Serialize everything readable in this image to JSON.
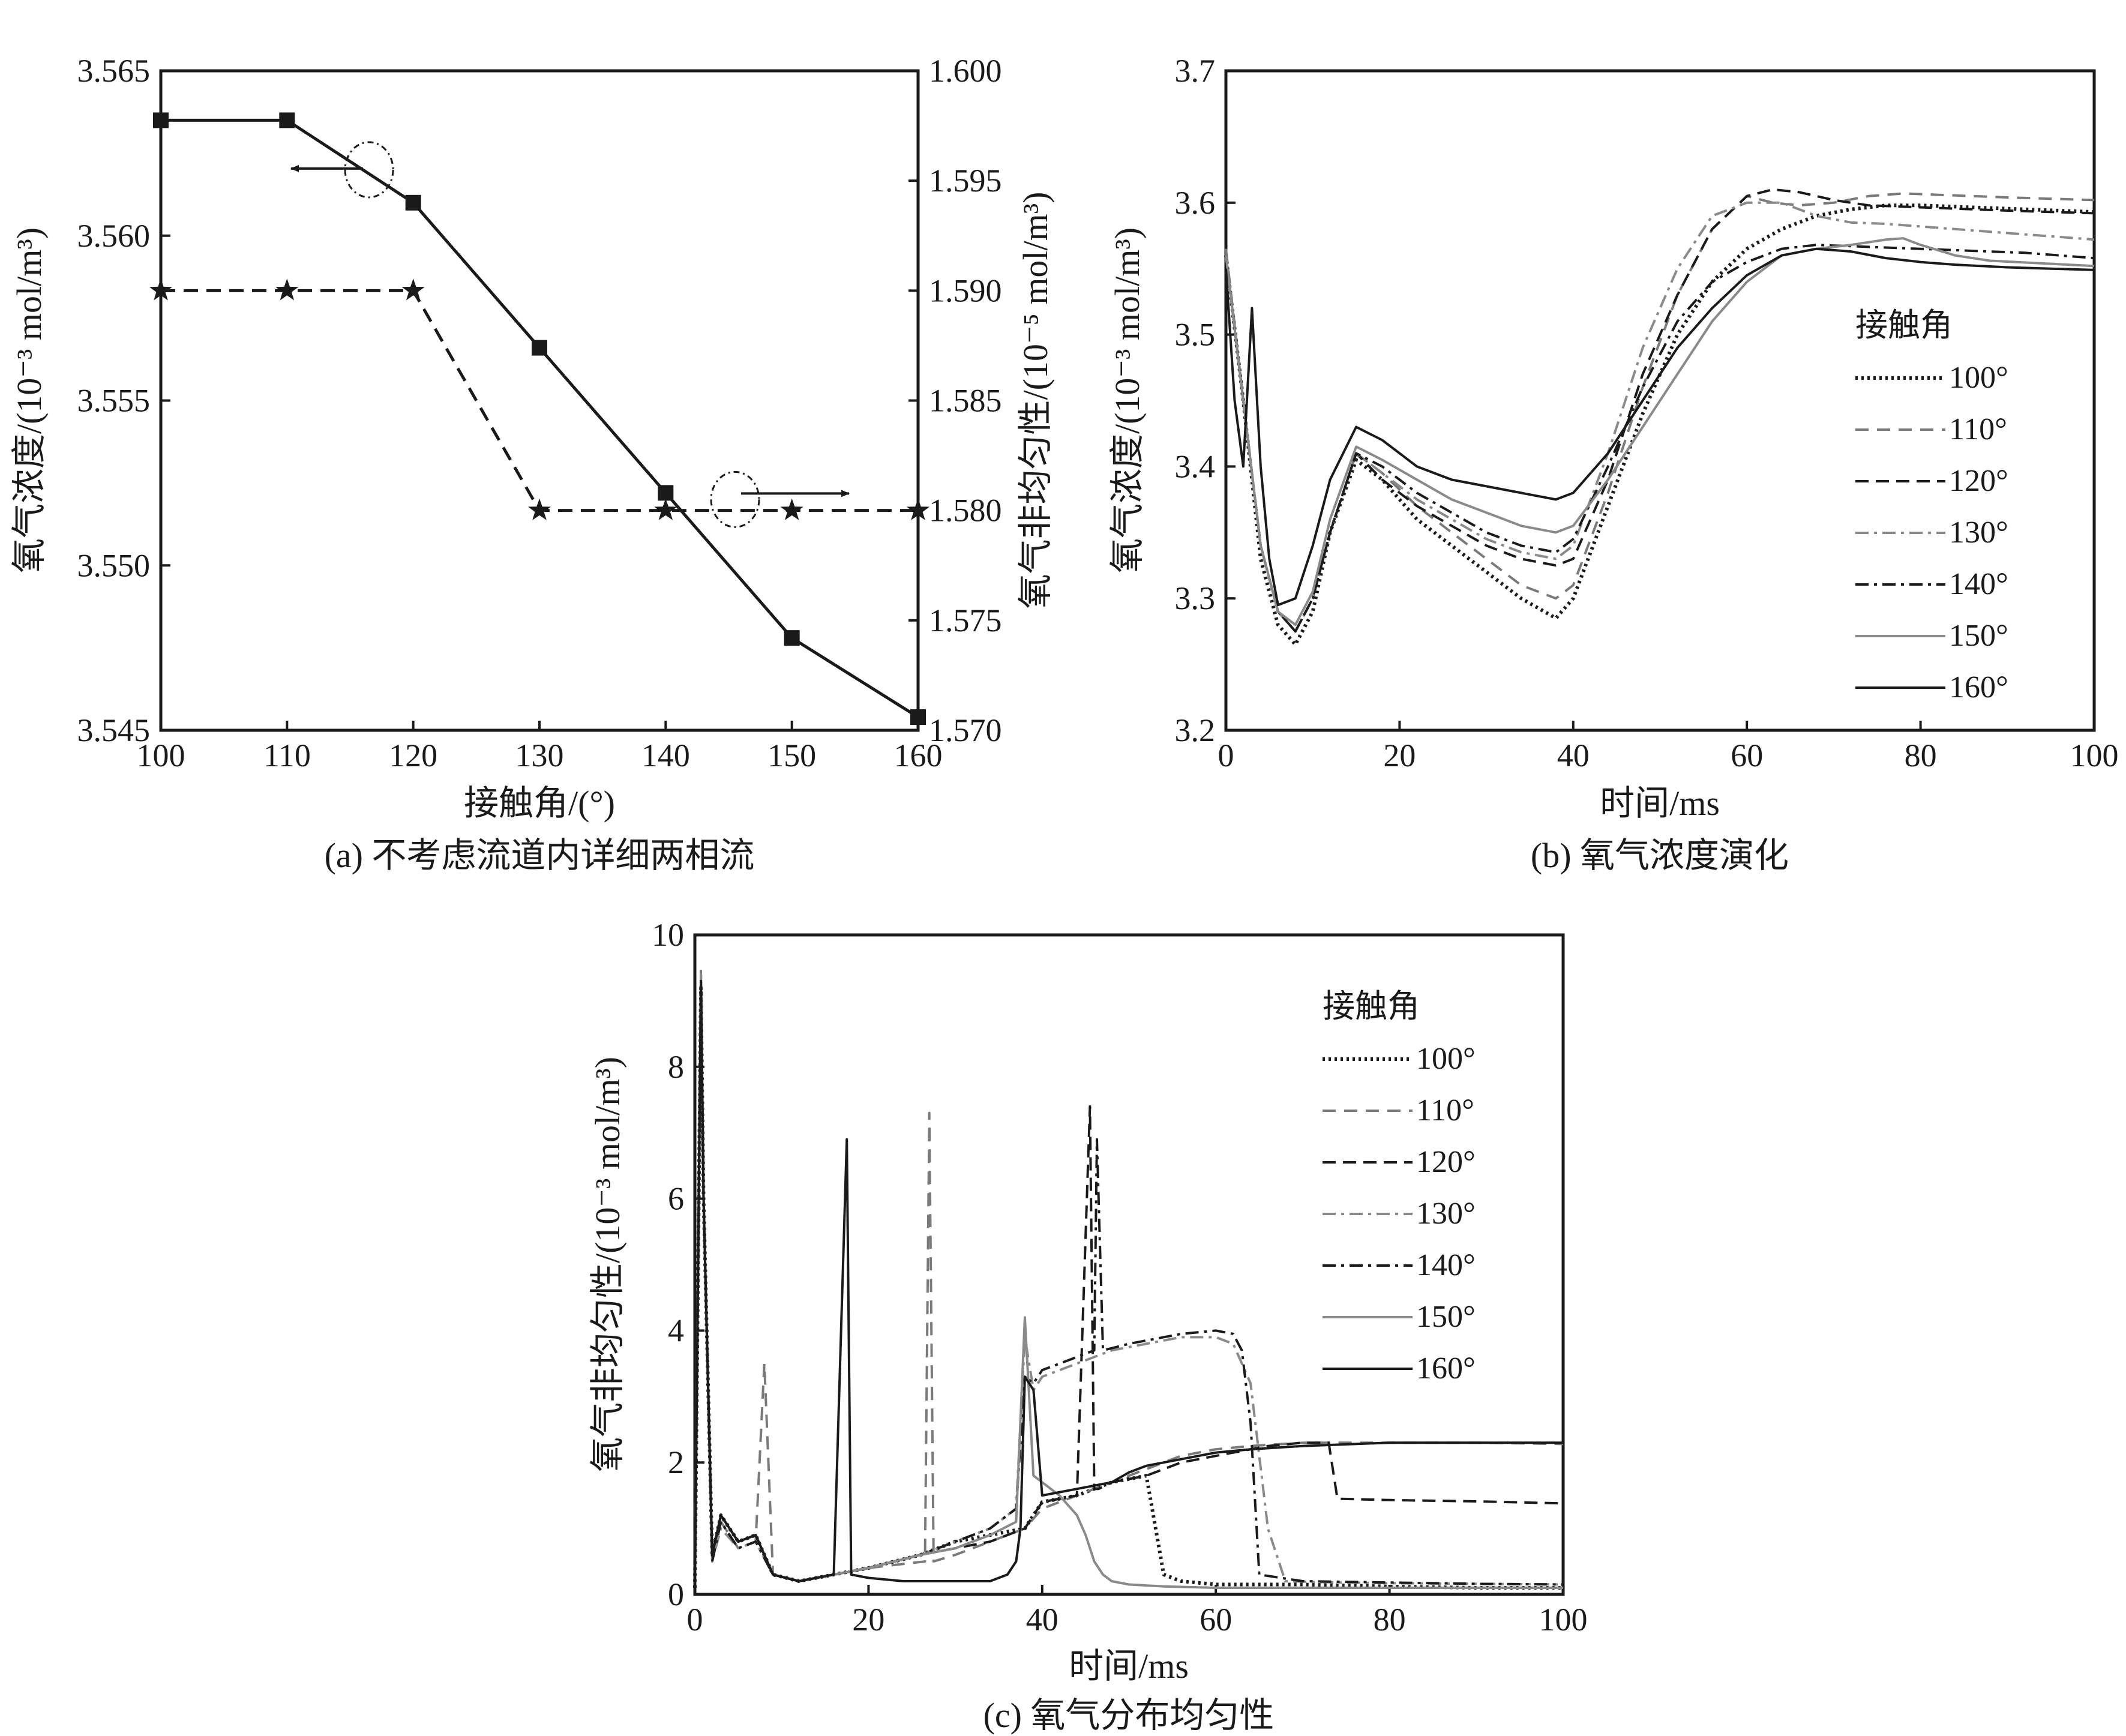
{
  "chart_data": [
    {
      "id": "a",
      "type": "line",
      "caption": "(a) 不考虑流道内详细两相流",
      "xlabel": "接触角/(°)",
      "ylabel_left": "氧气浓度/(10⁻³ mol/m³)",
      "ylabel_right": "氧气非均匀性/(10⁻⁵ mol/m³)",
      "xlim": [
        100,
        160
      ],
      "ylim_left": [
        3.545,
        3.565
      ],
      "ylim_right": [
        1.57,
        1.6
      ],
      "x_ticks": [
        "100",
        "110",
        "120",
        "130",
        "140",
        "150",
        "160"
      ],
      "y_left_ticks": [
        "3.545",
        "3.550",
        "3.555",
        "3.560",
        "3.565"
      ],
      "y_right_ticks": [
        "1.570",
        "1.575",
        "1.580",
        "1.585",
        "1.590",
        "1.595",
        "1.600"
      ],
      "series": [
        {
          "name": "氧气浓度",
          "axis": "left",
          "style": "solid",
          "marker": "square",
          "x": [
            100,
            110,
            120,
            130,
            140,
            150,
            160
          ],
          "values": [
            3.5635,
            3.5635,
            3.561,
            3.5566,
            3.5522,
            3.5478,
            3.5454
          ]
        },
        {
          "name": "氧气非均匀性",
          "axis": "right",
          "style": "dashed",
          "marker": "star",
          "x": [
            100,
            110,
            120,
            130,
            140,
            150,
            160
          ],
          "values": [
            1.59,
            1.59,
            1.59,
            1.58,
            1.58,
            1.58,
            1.58
          ]
        }
      ],
      "annotations": [
        {
          "target": "left",
          "arrow": "left",
          "at_x": 116.5,
          "at_y_left": 3.562
        },
        {
          "target": "right",
          "arrow": "right",
          "at_x": 145.5,
          "at_y_right": 1.5805
        }
      ]
    },
    {
      "id": "b",
      "type": "line",
      "caption": "(b) 氧气浓度演化",
      "xlabel": "时间/ms",
      "ylabel": "氧气浓度/(10⁻³ mol/m³)",
      "xlim": [
        0,
        100
      ],
      "ylim": [
        3.2,
        3.7
      ],
      "x_ticks": [
        "0",
        "20",
        "40",
        "60",
        "80",
        "100"
      ],
      "y_ticks": [
        "3.2",
        "3.3",
        "3.4",
        "3.5",
        "3.6",
        "3.7"
      ],
      "legend_title": "接触角",
      "legend_position": "right",
      "series": [
        {
          "name": "100°",
          "color": "#1a1a1a",
          "dash": "dotted",
          "x": [
            0,
            2,
            4,
            6,
            8,
            10,
            12,
            15,
            18,
            22,
            26,
            30,
            34,
            38,
            40,
            44,
            48,
            52,
            56,
            60,
            64,
            68,
            72,
            76,
            80,
            84,
            88,
            92,
            96,
            100
          ],
          "y": [
            3.56,
            3.45,
            3.33,
            3.28,
            3.265,
            3.29,
            3.35,
            3.405,
            3.39,
            3.36,
            3.34,
            3.32,
            3.3,
            3.285,
            3.3,
            3.37,
            3.44,
            3.5,
            3.54,
            3.565,
            3.58,
            3.59,
            3.595,
            3.598,
            3.598,
            3.597,
            3.596,
            3.595,
            3.594,
            3.593
          ]
        },
        {
          "name": "110°",
          "color": "#7a7a7a",
          "dash": "dashed-light",
          "x": [
            0,
            2,
            4,
            6,
            8,
            10,
            12,
            15,
            18,
            22,
            26,
            30,
            34,
            38,
            40,
            44,
            48,
            52,
            56,
            60,
            63,
            66,
            70,
            74,
            78,
            82,
            86,
            90,
            95,
            100
          ],
          "y": [
            3.565,
            3.45,
            3.34,
            3.29,
            3.275,
            3.3,
            3.35,
            3.41,
            3.395,
            3.37,
            3.35,
            3.33,
            3.31,
            3.3,
            3.31,
            3.38,
            3.46,
            3.53,
            3.58,
            3.605,
            3.6,
            3.598,
            3.6,
            3.605,
            3.607,
            3.606,
            3.605,
            3.604,
            3.603,
            3.602
          ]
        },
        {
          "name": "120°",
          "color": "#1a1a1a",
          "dash": "dashed",
          "x": [
            0,
            2,
            4,
            6,
            8,
            10,
            12,
            15,
            18,
            22,
            26,
            30,
            34,
            38,
            40,
            44,
            48,
            52,
            56,
            60,
            63,
            66,
            70,
            74,
            78,
            82,
            86,
            90,
            95,
            100
          ],
          "y": [
            3.56,
            3.45,
            3.34,
            3.29,
            3.275,
            3.3,
            3.35,
            3.41,
            3.39,
            3.37,
            3.355,
            3.34,
            3.33,
            3.325,
            3.33,
            3.39,
            3.47,
            3.53,
            3.58,
            3.605,
            3.61,
            3.608,
            3.602,
            3.598,
            3.597,
            3.596,
            3.595,
            3.594,
            3.593,
            3.592
          ]
        },
        {
          "name": "130°",
          "color": "#8a8a8a",
          "dash": "dashdot",
          "x": [
            0,
            2,
            4,
            6,
            8,
            10,
            12,
            15,
            18,
            22,
            26,
            30,
            34,
            38,
            40,
            44,
            48,
            52,
            56,
            60,
            64,
            68,
            72,
            76,
            80,
            84,
            88,
            92,
            96,
            100
          ],
          "y": [
            3.56,
            3.45,
            3.34,
            3.29,
            3.275,
            3.3,
            3.35,
            3.41,
            3.395,
            3.375,
            3.36,
            3.345,
            3.335,
            3.33,
            3.34,
            3.41,
            3.49,
            3.55,
            3.59,
            3.6,
            3.6,
            3.59,
            3.585,
            3.584,
            3.582,
            3.58,
            3.578,
            3.576,
            3.574,
            3.572
          ]
        },
        {
          "name": "140°",
          "color": "#1a1a1a",
          "dash": "dashdot",
          "x": [
            0,
            2,
            4,
            6,
            8,
            10,
            12,
            15,
            18,
            22,
            26,
            30,
            34,
            38,
            40,
            44,
            48,
            52,
            56,
            60,
            64,
            68,
            72,
            76,
            80,
            84,
            88,
            92,
            96,
            100
          ],
          "y": [
            3.56,
            3.45,
            3.34,
            3.29,
            3.275,
            3.3,
            3.35,
            3.41,
            3.4,
            3.38,
            3.365,
            3.35,
            3.34,
            3.335,
            3.345,
            3.4,
            3.46,
            3.51,
            3.54,
            3.555,
            3.565,
            3.568,
            3.567,
            3.566,
            3.565,
            3.564,
            3.563,
            3.562,
            3.56,
            3.558
          ]
        },
        {
          "name": "150°",
          "color": "#8a8a8a",
          "dash": "solid",
          "x": [
            0,
            2,
            4,
            6,
            8,
            10,
            12,
            15,
            18,
            22,
            26,
            30,
            34,
            38,
            40,
            44,
            48,
            52,
            56,
            60,
            64,
            68,
            72,
            76,
            78,
            80,
            84,
            88,
            94,
            100
          ],
          "y": [
            3.56,
            3.45,
            3.34,
            3.29,
            3.28,
            3.305,
            3.36,
            3.415,
            3.405,
            3.39,
            3.375,
            3.365,
            3.355,
            3.35,
            3.355,
            3.39,
            3.43,
            3.47,
            3.51,
            3.54,
            3.56,
            3.565,
            3.568,
            3.572,
            3.573,
            3.568,
            3.56,
            3.556,
            3.554,
            3.552
          ]
        },
        {
          "name": "160°",
          "color": "#1a1a1a",
          "dash": "solid",
          "x": [
            0,
            1,
            2,
            3,
            4,
            5,
            6,
            8,
            10,
            12,
            15,
            18,
            22,
            26,
            30,
            34,
            38,
            40,
            44,
            48,
            52,
            56,
            60,
            64,
            68,
            72,
            76,
            80,
            84,
            90,
            100
          ],
          "y": [
            3.55,
            3.45,
            3.4,
            3.52,
            3.4,
            3.33,
            3.295,
            3.3,
            3.34,
            3.39,
            3.43,
            3.42,
            3.4,
            3.39,
            3.385,
            3.38,
            3.375,
            3.38,
            3.41,
            3.45,
            3.49,
            3.52,
            3.545,
            3.56,
            3.565,
            3.563,
            3.558,
            3.555,
            3.553,
            3.551,
            3.549
          ]
        }
      ]
    },
    {
      "id": "c",
      "type": "line",
      "caption": "(c) 氧气分布均匀性",
      "xlabel": "时间/ms",
      "ylabel": "氧气非均匀性/(10⁻³ mol/m³)",
      "xlim": [
        0,
        100
      ],
      "ylim": [
        0,
        10
      ],
      "x_ticks": [
        "0",
        "20",
        "40",
        "60",
        "80",
        "100"
      ],
      "y_ticks": [
        "0",
        "2",
        "4",
        "6",
        "8",
        "10"
      ],
      "legend_title": "接触角",
      "legend_position": "top-right",
      "series": [
        {
          "name": "100°",
          "color": "#1a1a1a",
          "dash": "dotted",
          "x": [
            0,
            0.7,
            1,
            2,
            3,
            5,
            7,
            9,
            12,
            16,
            20,
            26,
            30,
            34,
            38,
            39,
            40,
            44,
            48,
            52,
            54,
            56,
            60,
            64,
            70,
            80,
            90,
            100
          ],
          "y": [
            0.1,
            9.2,
            6,
            0.6,
            1.2,
            0.8,
            0.9,
            0.3,
            0.2,
            0.3,
            0.4,
            0.6,
            0.8,
            0.9,
            1.0,
            1.2,
            1.4,
            1.5,
            1.7,
            1.8,
            0.3,
            0.2,
            0.15,
            0.15,
            0.15,
            0.12,
            0.1,
            0.1
          ]
        },
        {
          "name": "110°",
          "color": "#7a7a7a",
          "dash": "dashed-light",
          "x": [
            0,
            0.7,
            1,
            2,
            3,
            5,
            7,
            8,
            9,
            12,
            16,
            20,
            26.5,
            27,
            27.5,
            30,
            34,
            38,
            40,
            44,
            48,
            52,
            56,
            60,
            64,
            70,
            80,
            90,
            100
          ],
          "y": [
            0.1,
            9.5,
            6,
            0.5,
            1.1,
            0.7,
            0.8,
            3.5,
            0.3,
            0.2,
            0.3,
            0.4,
            0.5,
            7.3,
            0.5,
            0.6,
            0.8,
            1.0,
            1.3,
            1.5,
            1.7,
            1.9,
            2.1,
            2.2,
            2.25,
            2.3,
            2.3,
            2.3,
            2.28
          ]
        },
        {
          "name": "120°",
          "color": "#1a1a1a",
          "dash": "dashed",
          "x": [
            0,
            0.7,
            1,
            2,
            3,
            5,
            7,
            9,
            12,
            16,
            20,
            26,
            30,
            34,
            38,
            40,
            44,
            45.5,
            46,
            46.5,
            48,
            52,
            56,
            60,
            66,
            70,
            73,
            74,
            80,
            90,
            100
          ],
          "y": [
            0.1,
            9.3,
            6,
            0.6,
            1.2,
            0.8,
            0.9,
            0.3,
            0.2,
            0.3,
            0.4,
            0.6,
            0.7,
            0.8,
            1.0,
            1.4,
            1.5,
            7.4,
            1.6,
            1.6,
            1.7,
            1.8,
            2.0,
            2.1,
            2.25,
            2.3,
            2.3,
            1.45,
            1.43,
            1.41,
            1.38
          ]
        },
        {
          "name": "130°",
          "color": "#8a8a8a",
          "dash": "dashdot",
          "x": [
            0,
            0.7,
            1,
            2,
            3,
            5,
            7,
            9,
            12,
            16,
            20,
            26,
            30,
            34,
            37,
            38,
            39,
            40,
            44,
            48,
            52,
            56,
            60,
            62,
            64,
            66,
            68,
            74,
            80,
            90,
            100
          ],
          "y": [
            0.1,
            9.0,
            6,
            0.5,
            1.0,
            0.7,
            0.8,
            0.3,
            0.2,
            0.3,
            0.4,
            0.6,
            0.8,
            1.0,
            1.3,
            3.9,
            3.1,
            3.3,
            3.5,
            3.7,
            3.8,
            3.9,
            3.9,
            3.8,
            3.2,
            1.0,
            0.2,
            0.18,
            0.17,
            0.16,
            0.15
          ]
        },
        {
          "name": "140°",
          "color": "#1a1a1a",
          "dash": "dashdot",
          "x": [
            0,
            0.7,
            1,
            2,
            3,
            5,
            7,
            9,
            12,
            16,
            20,
            26,
            30,
            34,
            37,
            38,
            39,
            40,
            44,
            46,
            46.3,
            47,
            50,
            56,
            60,
            62,
            63,
            64,
            65,
            70,
            80,
            90,
            100
          ],
          "y": [
            0.1,
            9.1,
            6,
            0.5,
            1.1,
            0.7,
            0.8,
            0.3,
            0.2,
            0.3,
            0.4,
            0.6,
            0.8,
            1.0,
            1.3,
            3.3,
            3.2,
            3.4,
            3.6,
            3.7,
            6.9,
            3.7,
            3.8,
            3.95,
            4.0,
            3.95,
            3.7,
            2.6,
            0.3,
            0.2,
            0.18,
            0.16,
            0.15
          ]
        },
        {
          "name": "150°",
          "color": "#8a8a8a",
          "dash": "solid",
          "x": [
            0,
            0.7,
            1,
            2,
            3,
            5,
            7,
            9,
            12,
            16,
            20,
            26,
            30,
            34,
            37,
            38,
            39,
            40,
            42,
            44,
            45,
            46,
            47,
            48,
            50,
            54,
            60,
            70,
            80,
            90,
            100
          ],
          "y": [
            0.1,
            9.4,
            6,
            0.6,
            1.2,
            0.8,
            0.9,
            0.3,
            0.2,
            0.3,
            0.4,
            0.6,
            0.7,
            0.9,
            1.1,
            4.2,
            1.8,
            1.7,
            1.5,
            1.2,
            0.9,
            0.5,
            0.3,
            0.2,
            0.15,
            0.12,
            0.1,
            0.1,
            0.1,
            0.1,
            0.1
          ]
        },
        {
          "name": "160°",
          "color": "#1a1a1a",
          "dash": "solid",
          "x": [
            0,
            0.7,
            1,
            2,
            3,
            5,
            7,
            9,
            12,
            16,
            17.5,
            18,
            20,
            24,
            30,
            34,
            36,
            37,
            37.5,
            38,
            39,
            40,
            44,
            48,
            50,
            52,
            56,
            60,
            64,
            70,
            80,
            90,
            100
          ],
          "y": [
            0.1,
            9.3,
            6,
            0.6,
            1.2,
            0.8,
            0.9,
            0.3,
            0.2,
            0.3,
            6.9,
            0.3,
            0.25,
            0.2,
            0.2,
            0.2,
            0.3,
            0.5,
            1.0,
            3.3,
            3.1,
            1.5,
            1.6,
            1.7,
            1.85,
            1.95,
            2.05,
            2.15,
            2.2,
            2.25,
            2.3,
            2.3,
            2.3
          ]
        }
      ]
    }
  ]
}
